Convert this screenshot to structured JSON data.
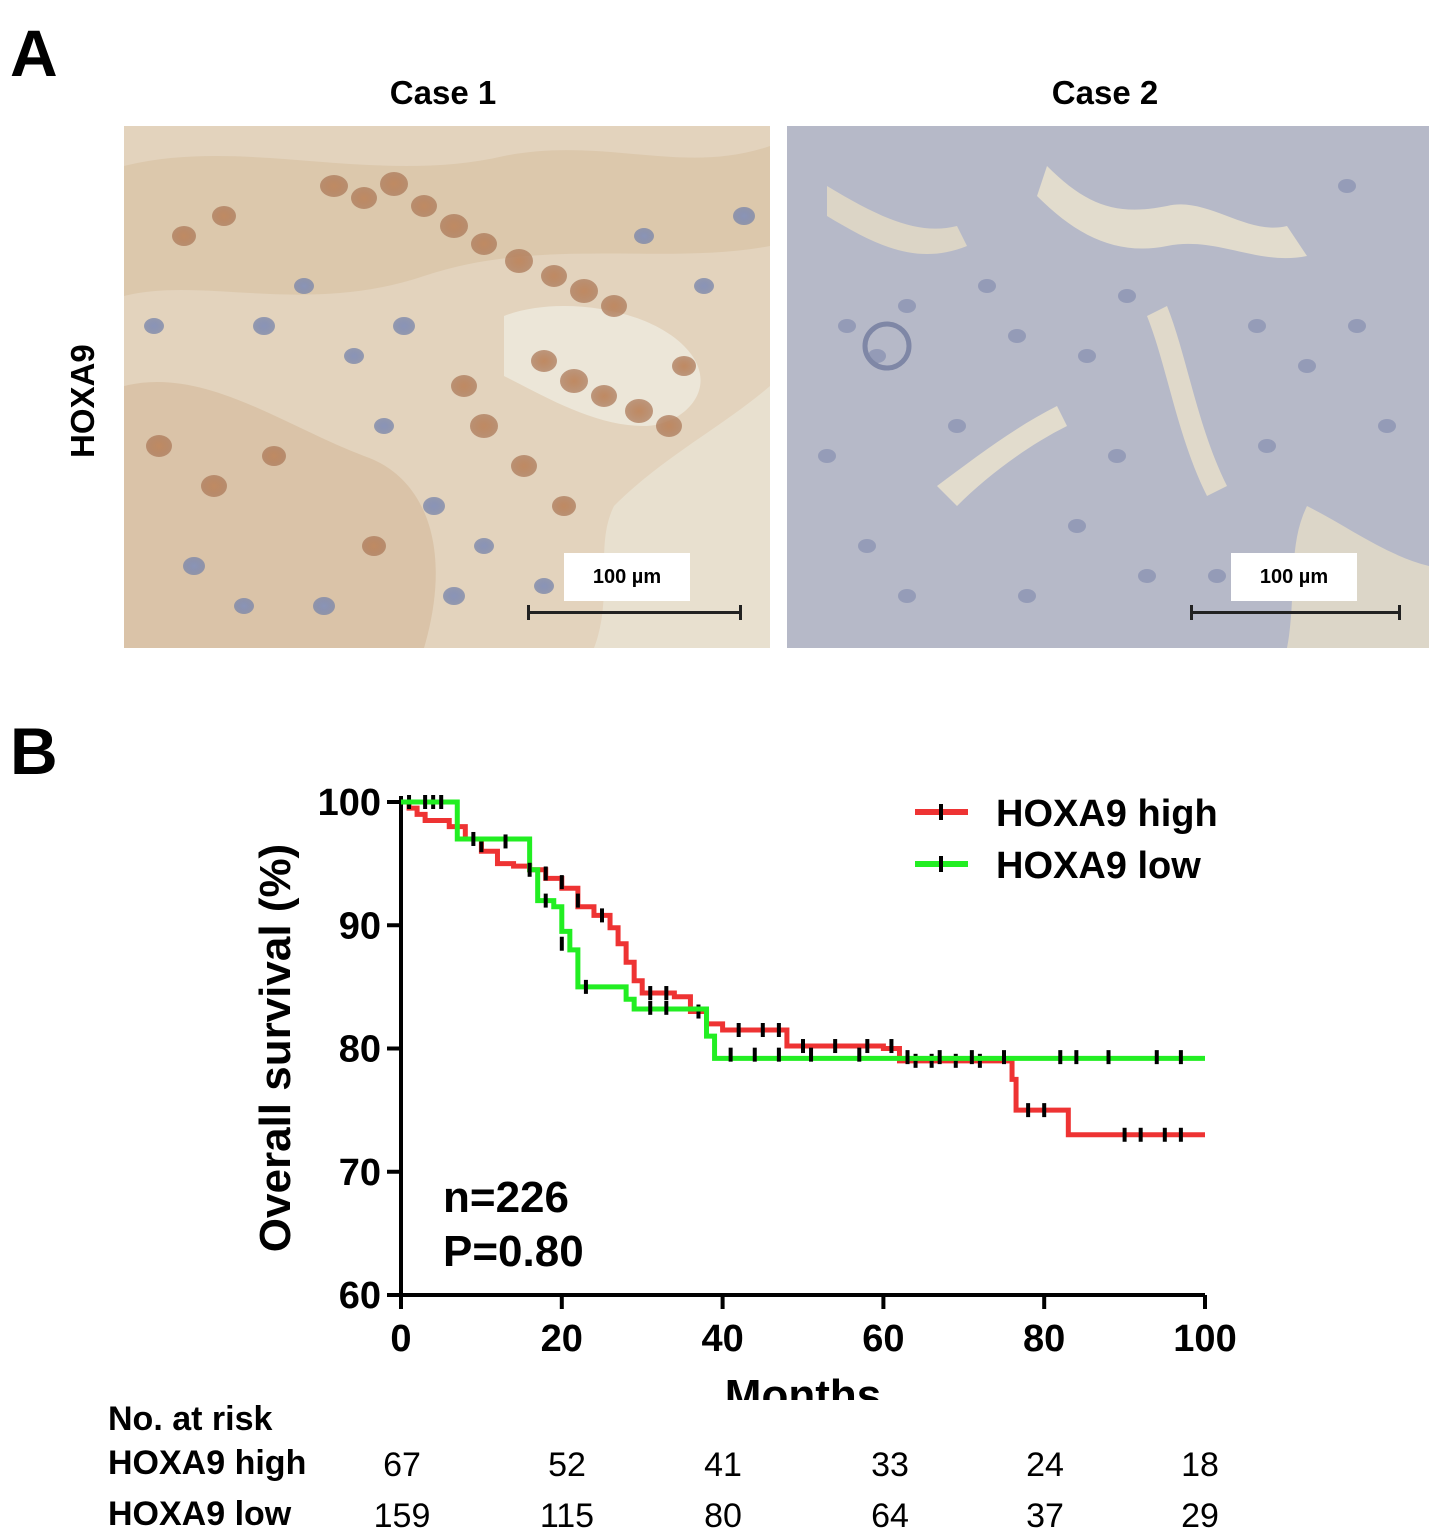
{
  "panel_a": {
    "letter": "A",
    "row_label": "HOXA9",
    "cases": [
      {
        "title": "Case 1",
        "scale_label": "100 µm"
      },
      {
        "title": "Case 2",
        "scale_label": "100 µm"
      }
    ]
  },
  "panel_b": {
    "letter": "B",
    "annotation_n": "n=226",
    "annotation_p": "P=0.80",
    "risk_table": {
      "header": "No. at risk",
      "rows": [
        {
          "label": "HOXA9 high",
          "values": [
            "67",
            "52",
            "41",
            "33",
            "24",
            "18"
          ]
        },
        {
          "label": "HOXA9 low",
          "values": [
            "159",
            "115",
            "80",
            "64",
            "37",
            "29"
          ]
        }
      ]
    }
  },
  "chart_data": {
    "type": "line",
    "step": true,
    "xlabel": "Months",
    "ylabel": "Overall survival (%)",
    "xlim": [
      0,
      100
    ],
    "ylim": [
      60,
      100
    ],
    "xticks": [
      0,
      20,
      40,
      60,
      80,
      100
    ],
    "yticks": [
      60,
      70,
      80,
      90,
      100
    ],
    "legend_position": "top-right",
    "series": [
      {
        "name": "HOXA9 high",
        "color": "#ee3333",
        "points": [
          [
            0,
            100
          ],
          [
            1,
            99.5
          ],
          [
            2,
            99
          ],
          [
            3,
            98.5
          ],
          [
            6,
            98
          ],
          [
            8,
            97
          ],
          [
            10,
            96
          ],
          [
            12,
            95
          ],
          [
            14,
            94.8
          ],
          [
            16,
            94.5
          ],
          [
            18,
            93.8
          ],
          [
            20,
            93
          ],
          [
            22,
            91.5
          ],
          [
            24,
            90.8
          ],
          [
            26,
            89.8
          ],
          [
            27,
            88.5
          ],
          [
            28,
            87
          ],
          [
            29,
            85.5
          ],
          [
            30,
            84.5
          ],
          [
            34,
            84.2
          ],
          [
            36,
            83
          ],
          [
            38,
            82
          ],
          [
            40,
            81.5
          ],
          [
            48,
            80.2
          ],
          [
            60,
            80
          ],
          [
            62,
            79
          ],
          [
            76,
            77.5
          ],
          [
            76.5,
            75
          ],
          [
            83,
            73
          ],
          [
            100,
            73
          ]
        ],
        "censored": [
          [
            1,
            100
          ],
          [
            4,
            100
          ],
          [
            10,
            96.5
          ],
          [
            18,
            94.2
          ],
          [
            20,
            93.5
          ],
          [
            22,
            92
          ],
          [
            25,
            90.8
          ],
          [
            31,
            84.5
          ],
          [
            33,
            84.5
          ],
          [
            37,
            83
          ],
          [
            42,
            81.5
          ],
          [
            45,
            81.5
          ],
          [
            47,
            81.5
          ],
          [
            50,
            80.2
          ],
          [
            54,
            80.2
          ],
          [
            58,
            80.2
          ],
          [
            61,
            80.2
          ],
          [
            64,
            79
          ],
          [
            66,
            79
          ],
          [
            69,
            79
          ],
          [
            72,
            79
          ],
          [
            78,
            75
          ],
          [
            80,
            75
          ],
          [
            90,
            73
          ],
          [
            92,
            73
          ],
          [
            95,
            73
          ],
          [
            97,
            73
          ]
        ]
      },
      {
        "name": "HOXA9 low",
        "color": "#22ee22",
        "points": [
          [
            0,
            100
          ],
          [
            6,
            100
          ],
          [
            7,
            97
          ],
          [
            15,
            97
          ],
          [
            16,
            94.5
          ],
          [
            17,
            92
          ],
          [
            19,
            91.5
          ],
          [
            20,
            89.5
          ],
          [
            21,
            88
          ],
          [
            22,
            85
          ],
          [
            27,
            85
          ],
          [
            28,
            84
          ],
          [
            29,
            83.2
          ],
          [
            37,
            83.2
          ],
          [
            38,
            81
          ],
          [
            39,
            79.2
          ],
          [
            100,
            79.2
          ]
        ],
        "censored": [
          [
            3,
            100
          ],
          [
            5,
            100
          ],
          [
            9,
            97
          ],
          [
            13,
            96.8
          ],
          [
            16,
            94.5
          ],
          [
            18,
            92
          ],
          [
            20,
            88.5
          ],
          [
            23,
            85
          ],
          [
            31,
            83.3
          ],
          [
            33,
            83.3
          ],
          [
            41,
            79.5
          ],
          [
            44,
            79.5
          ],
          [
            47,
            79.5
          ],
          [
            51,
            79.5
          ],
          [
            57,
            79.5
          ],
          [
            63,
            79.3
          ],
          [
            67,
            79.3
          ],
          [
            71,
            79.3
          ],
          [
            75,
            79.3
          ],
          [
            82,
            79.3
          ],
          [
            84,
            79.3
          ],
          [
            88,
            79.3
          ],
          [
            94,
            79.3
          ],
          [
            97,
            79.3
          ]
        ]
      }
    ]
  }
}
